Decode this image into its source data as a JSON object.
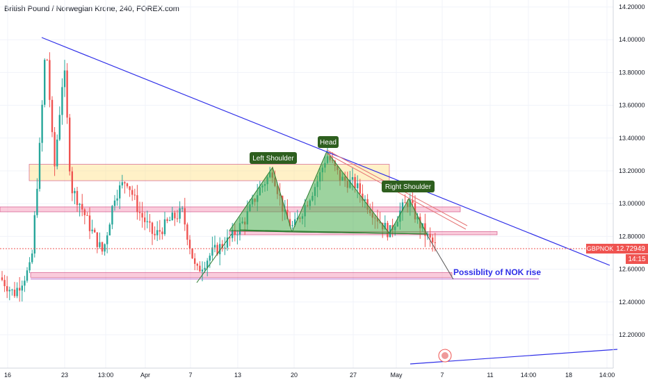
{
  "header": {
    "title": "British Pound / Norwegian Krone, 240, FOREX.com"
  },
  "chart_data": {
    "type": "candlestick",
    "symbol": "GBPNOK",
    "timeframe": "240",
    "source": "FOREX.com",
    "y_ticks": [
      "14.20000",
      "14.00000",
      "13.80000",
      "13.60000",
      "13.40000",
      "13.20000",
      "13.00000",
      "12.80000",
      "12.60000",
      "12.40000",
      "12.20000"
    ],
    "ylim": [
      12.05,
      14.25
    ],
    "x_ticks": [
      "16",
      "23",
      "13:00",
      "Apr",
      "7",
      "13",
      "20",
      "27",
      "May",
      "7",
      "11",
      "14:00",
      "18",
      "14:00"
    ],
    "last_price": {
      "label": "GBPNOK",
      "value": "12.72949",
      "countdown": "14:15"
    },
    "colors": {
      "up": "#26a69a",
      "down": "#ef5350",
      "trendline": "#2e2ee8",
      "pattern_fill": "#4caf50",
      "zone_pink": "#f48fb1",
      "zone_yellow": "#ffe082"
    },
    "pattern": {
      "name": "Head and Shoulders",
      "labels": {
        "left_shoulder": "Left Shoulder",
        "head": "Head",
        "right_shoulder": "Right Shoulder"
      }
    },
    "annotation": "Possiblity of NOK rise",
    "support_zones": [
      {
        "from": 13.14,
        "to": 13.24,
        "color": "yellow"
      },
      {
        "from": 12.95,
        "to": 12.98,
        "color": "pink"
      },
      {
        "from": 12.81,
        "to": 12.83,
        "color": "pink"
      },
      {
        "from": 12.55,
        "to": 12.58,
        "color": "pink"
      }
    ]
  }
}
